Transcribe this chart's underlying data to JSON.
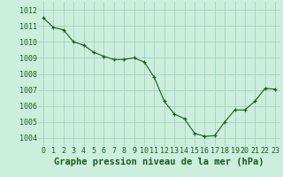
{
  "x": [
    0,
    1,
    2,
    3,
    4,
    5,
    6,
    7,
    8,
    9,
    10,
    11,
    12,
    13,
    14,
    15,
    16,
    17,
    18,
    19,
    20,
    21,
    22,
    23
  ],
  "y": [
    1011.5,
    1010.9,
    1010.75,
    1010.0,
    1009.8,
    1009.35,
    1009.1,
    1008.9,
    1008.9,
    1009.0,
    1008.75,
    1007.8,
    1006.3,
    1005.5,
    1005.2,
    1004.3,
    1004.1,
    1004.15,
    1005.0,
    1005.75,
    1005.75,
    1006.3,
    1007.1,
    1007.05
  ],
  "line_color": "#1a5c1a",
  "marker_color": "#1a5c1a",
  "bg_color": "#cceedd",
  "grid_color": "#99ccbb",
  "xlabel": "Graphe pression niveau de la mer (hPa)",
  "ylabel_ticks": [
    1004,
    1005,
    1006,
    1007,
    1008,
    1009,
    1010,
    1011,
    1012
  ],
  "ylim": [
    1003.5,
    1012.5
  ],
  "xlim": [
    -0.5,
    23.5
  ],
  "xticks": [
    0,
    1,
    2,
    3,
    4,
    5,
    6,
    7,
    8,
    9,
    10,
    11,
    12,
    13,
    14,
    15,
    16,
    17,
    18,
    19,
    20,
    21,
    22,
    23
  ],
  "tick_fontsize": 6,
  "label_fontsize": 7.5
}
